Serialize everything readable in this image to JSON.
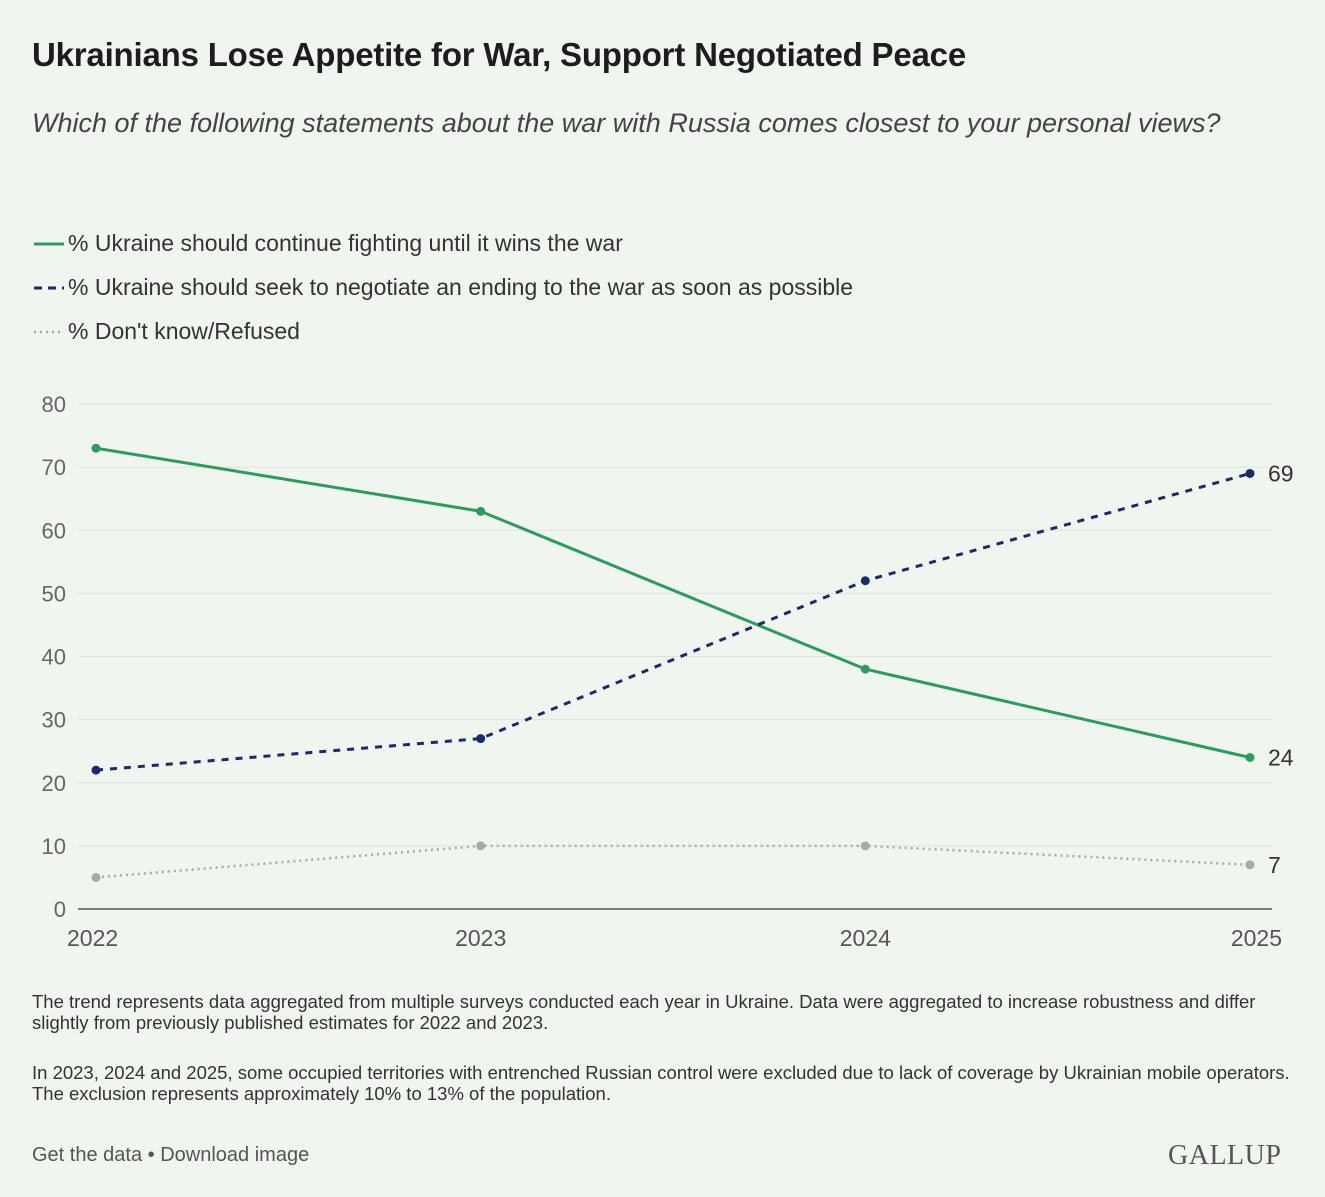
{
  "title": "Ukrainians Lose Appetite for War, Support Negotiated Peace",
  "subtitle": "Which of the following statements about the war with Russia comes closest to your personal views?",
  "notes": [
    "The trend represents data aggregated from multiple surveys conducted each year in Ukraine. Data were aggregated to increase robustness and differ slightly from previously published estimates for 2022 and 2023.",
    "In 2023, 2024 and 2025, some occupied territories with entrenched Russian control were excluded due to lack of coverage by Ukrainian mobile operators. The exclusion represents approximately 10% to 13% of the population."
  ],
  "footer": {
    "get_data": "Get the data",
    "separator": "•",
    "download": "Download image",
    "brand": "GALLUP"
  },
  "chart_data": {
    "type": "line",
    "title": "Ukrainians Lose Appetite for War, Support Negotiated Peace",
    "subtitle": "Which of the following statements about the war with Russia comes closest to your personal views?",
    "x": [
      "2022",
      "2023",
      "2024",
      "2025"
    ],
    "ylim": [
      0,
      80
    ],
    "yticks": [
      "0",
      "10",
      "20",
      "30",
      "40",
      "50",
      "60",
      "70",
      "80"
    ],
    "grid": true,
    "legend_position": "top-left",
    "series": [
      {
        "name": "% Ukraine should continue fighting until it wins the war",
        "values": [
          73,
          63,
          38,
          24
        ],
        "color": "#2f9a60",
        "style": "solid",
        "end_label": "24"
      },
      {
        "name": "% Ukraine should seek to negotiate an ending to the war as soon as possible",
        "values": [
          22,
          27,
          52,
          69
        ],
        "color": "#1b2a6b",
        "style": "dashed",
        "end_label": "69"
      },
      {
        "name": "% Don't know/Refused",
        "values": [
          5,
          10,
          10,
          7
        ],
        "color": "#a8aaa8",
        "style": "dotted",
        "end_label": "7"
      }
    ]
  }
}
